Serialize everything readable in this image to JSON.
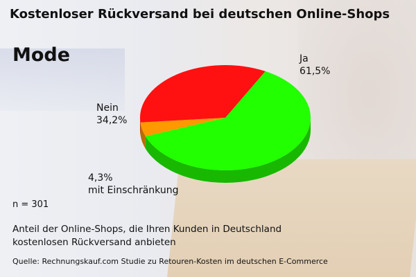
{
  "title": "Kostenloser Rückversand bei deutschen Online-Shops",
  "chart_data": {
    "type": "pie",
    "title": "Kostenloser Rückversand bei deutschen Online-Shops",
    "subtitle": "Mode",
    "slices": [
      {
        "label": "Ja",
        "value": 61.5,
        "display": "61,5%",
        "color": "#22ff00"
      },
      {
        "label": "mit Einschränkung",
        "value": 4.3,
        "display": "4,3%",
        "color": "#ff9900"
      },
      {
        "label": "Nein",
        "value": 34.2,
        "display": "34,2%",
        "color": "#ff1111"
      }
    ]
  },
  "sample_size": "n = 301",
  "caption_line1": "Anteil der Online-Shops, die Ihren Kunden in Deutschland",
  "caption_line2": "kostenlosen Rückversand anbieten",
  "source": "Quelle: Rechnungskauf.com Studie zu Retouren-Kosten im deutschen E-Commerce"
}
